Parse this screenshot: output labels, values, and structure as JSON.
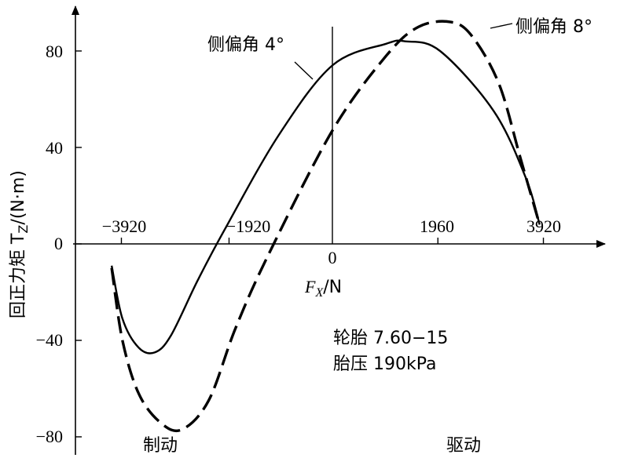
{
  "chart_data": {
    "type": "line",
    "xlabel": {
      "prefix": "F",
      "sub": "X",
      "suffix": "/N"
    },
    "ylabel": {
      "prefix": "回正力矩 T",
      "sub": "Z",
      "suffix": "/(N·m)"
    },
    "x_ticks": [
      {
        "value": -3920,
        "label": "−3920"
      },
      {
        "value": -1920,
        "label": "−1920"
      },
      {
        "value": 0,
        "label": "0"
      },
      {
        "value": 1960,
        "label": "1960"
      },
      {
        "value": 3920,
        "label": "3920"
      }
    ],
    "y_ticks": [
      {
        "value": 80,
        "label": "80"
      },
      {
        "value": 40,
        "label": "40"
      },
      {
        "value": 0,
        "label": "0"
      },
      {
        "value": -40,
        "label": "−40"
      },
      {
        "value": -80,
        "label": "−80"
      }
    ],
    "xlim": [
      -4350,
      4850
    ],
    "ylim": [
      -88,
      100
    ],
    "grid": false,
    "series": [
      {
        "name": "侧偏角 4°",
        "style": "solid",
        "points": [
          [
            -4100,
            -9
          ],
          [
            -3900,
            -31
          ],
          [
            -3600,
            -43
          ],
          [
            -3300,
            -45
          ],
          [
            -3000,
            -38
          ],
          [
            -2500,
            -15
          ],
          [
            -2000,
            6
          ],
          [
            -1000,
            45
          ],
          [
            0,
            74
          ],
          [
            1000,
            83
          ],
          [
            1350,
            84
          ],
          [
            2000,
            80
          ],
          [
            3000,
            55
          ],
          [
            3600,
            27
          ],
          [
            3850,
            8
          ]
        ]
      },
      {
        "name": "侧偏角 8°",
        "style": "dashed",
        "points": [
          [
            -4100,
            -10
          ],
          [
            -3900,
            -40
          ],
          [
            -3600,
            -62
          ],
          [
            -3200,
            -74
          ],
          [
            -2800,
            -77
          ],
          [
            -2300,
            -65
          ],
          [
            -1800,
            -35
          ],
          [
            -1200,
            -5
          ],
          [
            0,
            47
          ],
          [
            1000,
            78
          ],
          [
            1600,
            90
          ],
          [
            2200,
            92
          ],
          [
            2600,
            86
          ],
          [
            3100,
            66
          ],
          [
            3500,
            35
          ],
          [
            3850,
            8
          ]
        ]
      }
    ],
    "annotations": [
      {
        "text": "侧偏角 4°",
        "series": 0
      },
      {
        "text": "侧偏角 8°",
        "series": 1
      },
      {
        "text": "轮胎 7.60−15"
      },
      {
        "text": "胎压 190kPa"
      },
      {
        "text": "制动"
      },
      {
        "text": "驱动"
      }
    ]
  }
}
